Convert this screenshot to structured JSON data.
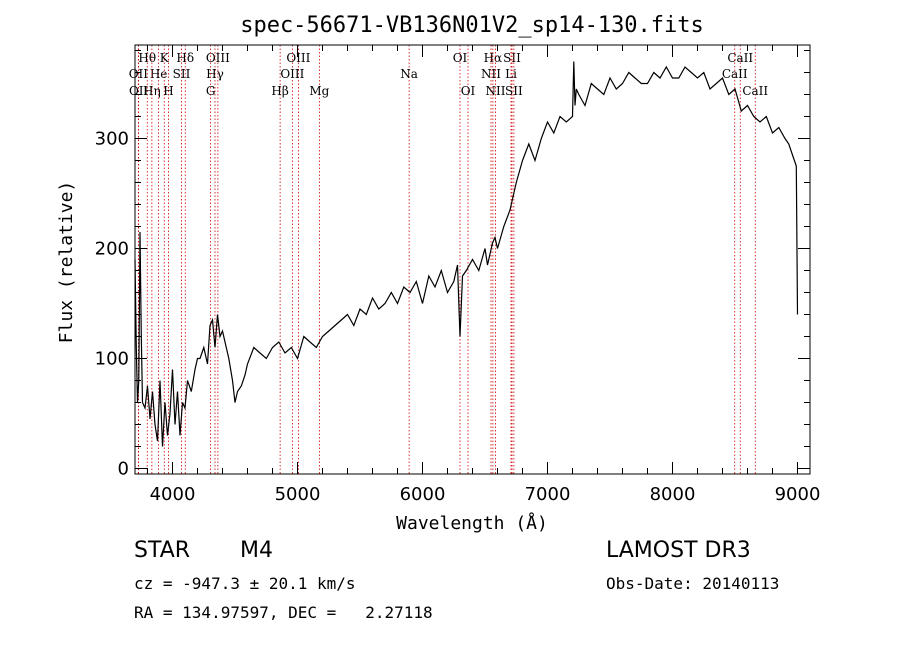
{
  "chart_data": {
    "type": "line",
    "title": "spec-56671-VB136N01V2_sp14-130.fits",
    "xlabel": "Wavelength (Å)",
    "ylabel": "Flux (relative)",
    "xlim": [
      3700,
      9100
    ],
    "ylim": [
      -5,
      385
    ],
    "xticks": [
      4000,
      5000,
      6000,
      7000,
      8000,
      9000
    ],
    "yticks": [
      0,
      100,
      200,
      300
    ],
    "line_color": "#000000",
    "marker_color": "#cc0000",
    "spectrum": {
      "x": [
        3700,
        3710,
        3720,
        3730,
        3740,
        3750,
        3760,
        3780,
        3800,
        3820,
        3840,
        3860,
        3880,
        3900,
        3920,
        3940,
        3960,
        3980,
        4000,
        4020,
        4040,
        4060,
        4080,
        4100,
        4120,
        4150,
        4180,
        4200,
        4220,
        4250,
        4280,
        4300,
        4320,
        4340,
        4360,
        4380,
        4400,
        4420,
        4450,
        4480,
        4500,
        4520,
        4550,
        4580,
        4600,
        4650,
        4700,
        4750,
        4800,
        4850,
        4900,
        4950,
        5000,
        5050,
        5100,
        5150,
        5200,
        5250,
        5300,
        5350,
        5400,
        5450,
        5500,
        5550,
        5600,
        5650,
        5700,
        5750,
        5800,
        5850,
        5900,
        5950,
        6000,
        6050,
        6100,
        6150,
        6200,
        6250,
        6280,
        6300,
        6320,
        6350,
        6400,
        6450,
        6500,
        6520,
        6540,
        6560,
        6580,
        6600,
        6650,
        6700,
        6750,
        6800,
        6850,
        6900,
        6950,
        7000,
        7050,
        7100,
        7150,
        7200,
        7210,
        7220,
        7230,
        7250,
        7300,
        7350,
        7400,
        7450,
        7500,
        7550,
        7600,
        7650,
        7700,
        7750,
        7800,
        7850,
        7900,
        7950,
        8000,
        8050,
        8100,
        8150,
        8200,
        8250,
        8300,
        8350,
        8400,
        8450,
        8500,
        8550,
        8600,
        8650,
        8700,
        8750,
        8800,
        8850,
        8900,
        8930,
        8960,
        8990,
        9000
      ],
      "y": [
        190,
        110,
        60,
        80,
        215,
        120,
        60,
        55,
        75,
        45,
        70,
        40,
        25,
        80,
        20,
        60,
        30,
        50,
        90,
        40,
        70,
        30,
        60,
        55,
        80,
        70,
        90,
        100,
        100,
        110,
        95,
        130,
        135,
        110,
        140,
        120,
        125,
        115,
        100,
        80,
        60,
        70,
        75,
        85,
        95,
        110,
        105,
        100,
        110,
        115,
        105,
        110,
        100,
        120,
        115,
        110,
        120,
        125,
        130,
        135,
        140,
        130,
        145,
        140,
        155,
        145,
        150,
        160,
        150,
        165,
        160,
        170,
        150,
        175,
        165,
        180,
        160,
        170,
        185,
        120,
        175,
        180,
        190,
        180,
        200,
        185,
        195,
        205,
        210,
        200,
        220,
        235,
        260,
        280,
        295,
        280,
        300,
        315,
        305,
        320,
        315,
        320,
        370,
        330,
        345,
        340,
        330,
        350,
        345,
        340,
        355,
        345,
        350,
        360,
        355,
        350,
        350,
        360,
        355,
        365,
        355,
        355,
        365,
        360,
        355,
        360,
        345,
        350,
        355,
        340,
        345,
        325,
        330,
        320,
        315,
        320,
        305,
        310,
        300,
        295,
        285,
        275,
        140
      ]
    },
    "lines": [
      {
        "label": "Hθ",
        "x": 3798,
        "row": 0
      },
      {
        "label": "K",
        "x": 3934,
        "row": 0
      },
      {
        "label": "Hδ",
        "x": 4102,
        "row": 0
      },
      {
        "label": "OIII",
        "x": 4363,
        "row": 0
      },
      {
        "label": "OIII",
        "x": 5007,
        "row": 0
      },
      {
        "label": "OI",
        "x": 6300,
        "row": 0
      },
      {
        "label": "Hα",
        "x": 6563,
        "row": 0
      },
      {
        "label": "SII",
        "x": 6716,
        "row": 0
      },
      {
        "label": "CaII",
        "x": 8542,
        "row": 0
      },
      {
        "label": "OII",
        "x": 3727,
        "row": 1
      },
      {
        "label": "He",
        "x": 3889,
        "row": 1
      },
      {
        "label": "SII",
        "x": 4072,
        "row": 1
      },
      {
        "label": "Hγ",
        "x": 4340,
        "row": 1
      },
      {
        "label": "OIII",
        "x": 4959,
        "row": 1
      },
      {
        "label": "Na",
        "x": 5893,
        "row": 1
      },
      {
        "label": "NII",
        "x": 6548,
        "row": 1
      },
      {
        "label": "Li",
        "x": 6708,
        "row": 1
      },
      {
        "label": "CaII",
        "x": 8498,
        "row": 1
      },
      {
        "label": "OII",
        "x": 3729,
        "row": 2
      },
      {
        "label": "Hη",
        "x": 3835,
        "row": 2
      },
      {
        "label": "H",
        "x": 3968,
        "row": 2
      },
      {
        "label": "G",
        "x": 4305,
        "row": 2
      },
      {
        "label": "Hβ",
        "x": 4861,
        "row": 2
      },
      {
        "label": "Mg",
        "x": 5175,
        "row": 2
      },
      {
        "label": "OI",
        "x": 6364,
        "row": 2
      },
      {
        "label": "NII",
        "x": 6584,
        "row": 2
      },
      {
        "label": "SII",
        "x": 6731,
        "row": 2
      },
      {
        "label": "CaII",
        "x": 8662,
        "row": 2
      }
    ]
  },
  "footer": {
    "class_label": "STAR",
    "subclass": "M4",
    "survey": "LAMOST DR3",
    "cz_line": "cz = -947.3 ± 20.1 km/s",
    "obs_date": "Obs-Date: 20140113",
    "coords": "RA = 134.97597, DEC =   2.27118"
  }
}
